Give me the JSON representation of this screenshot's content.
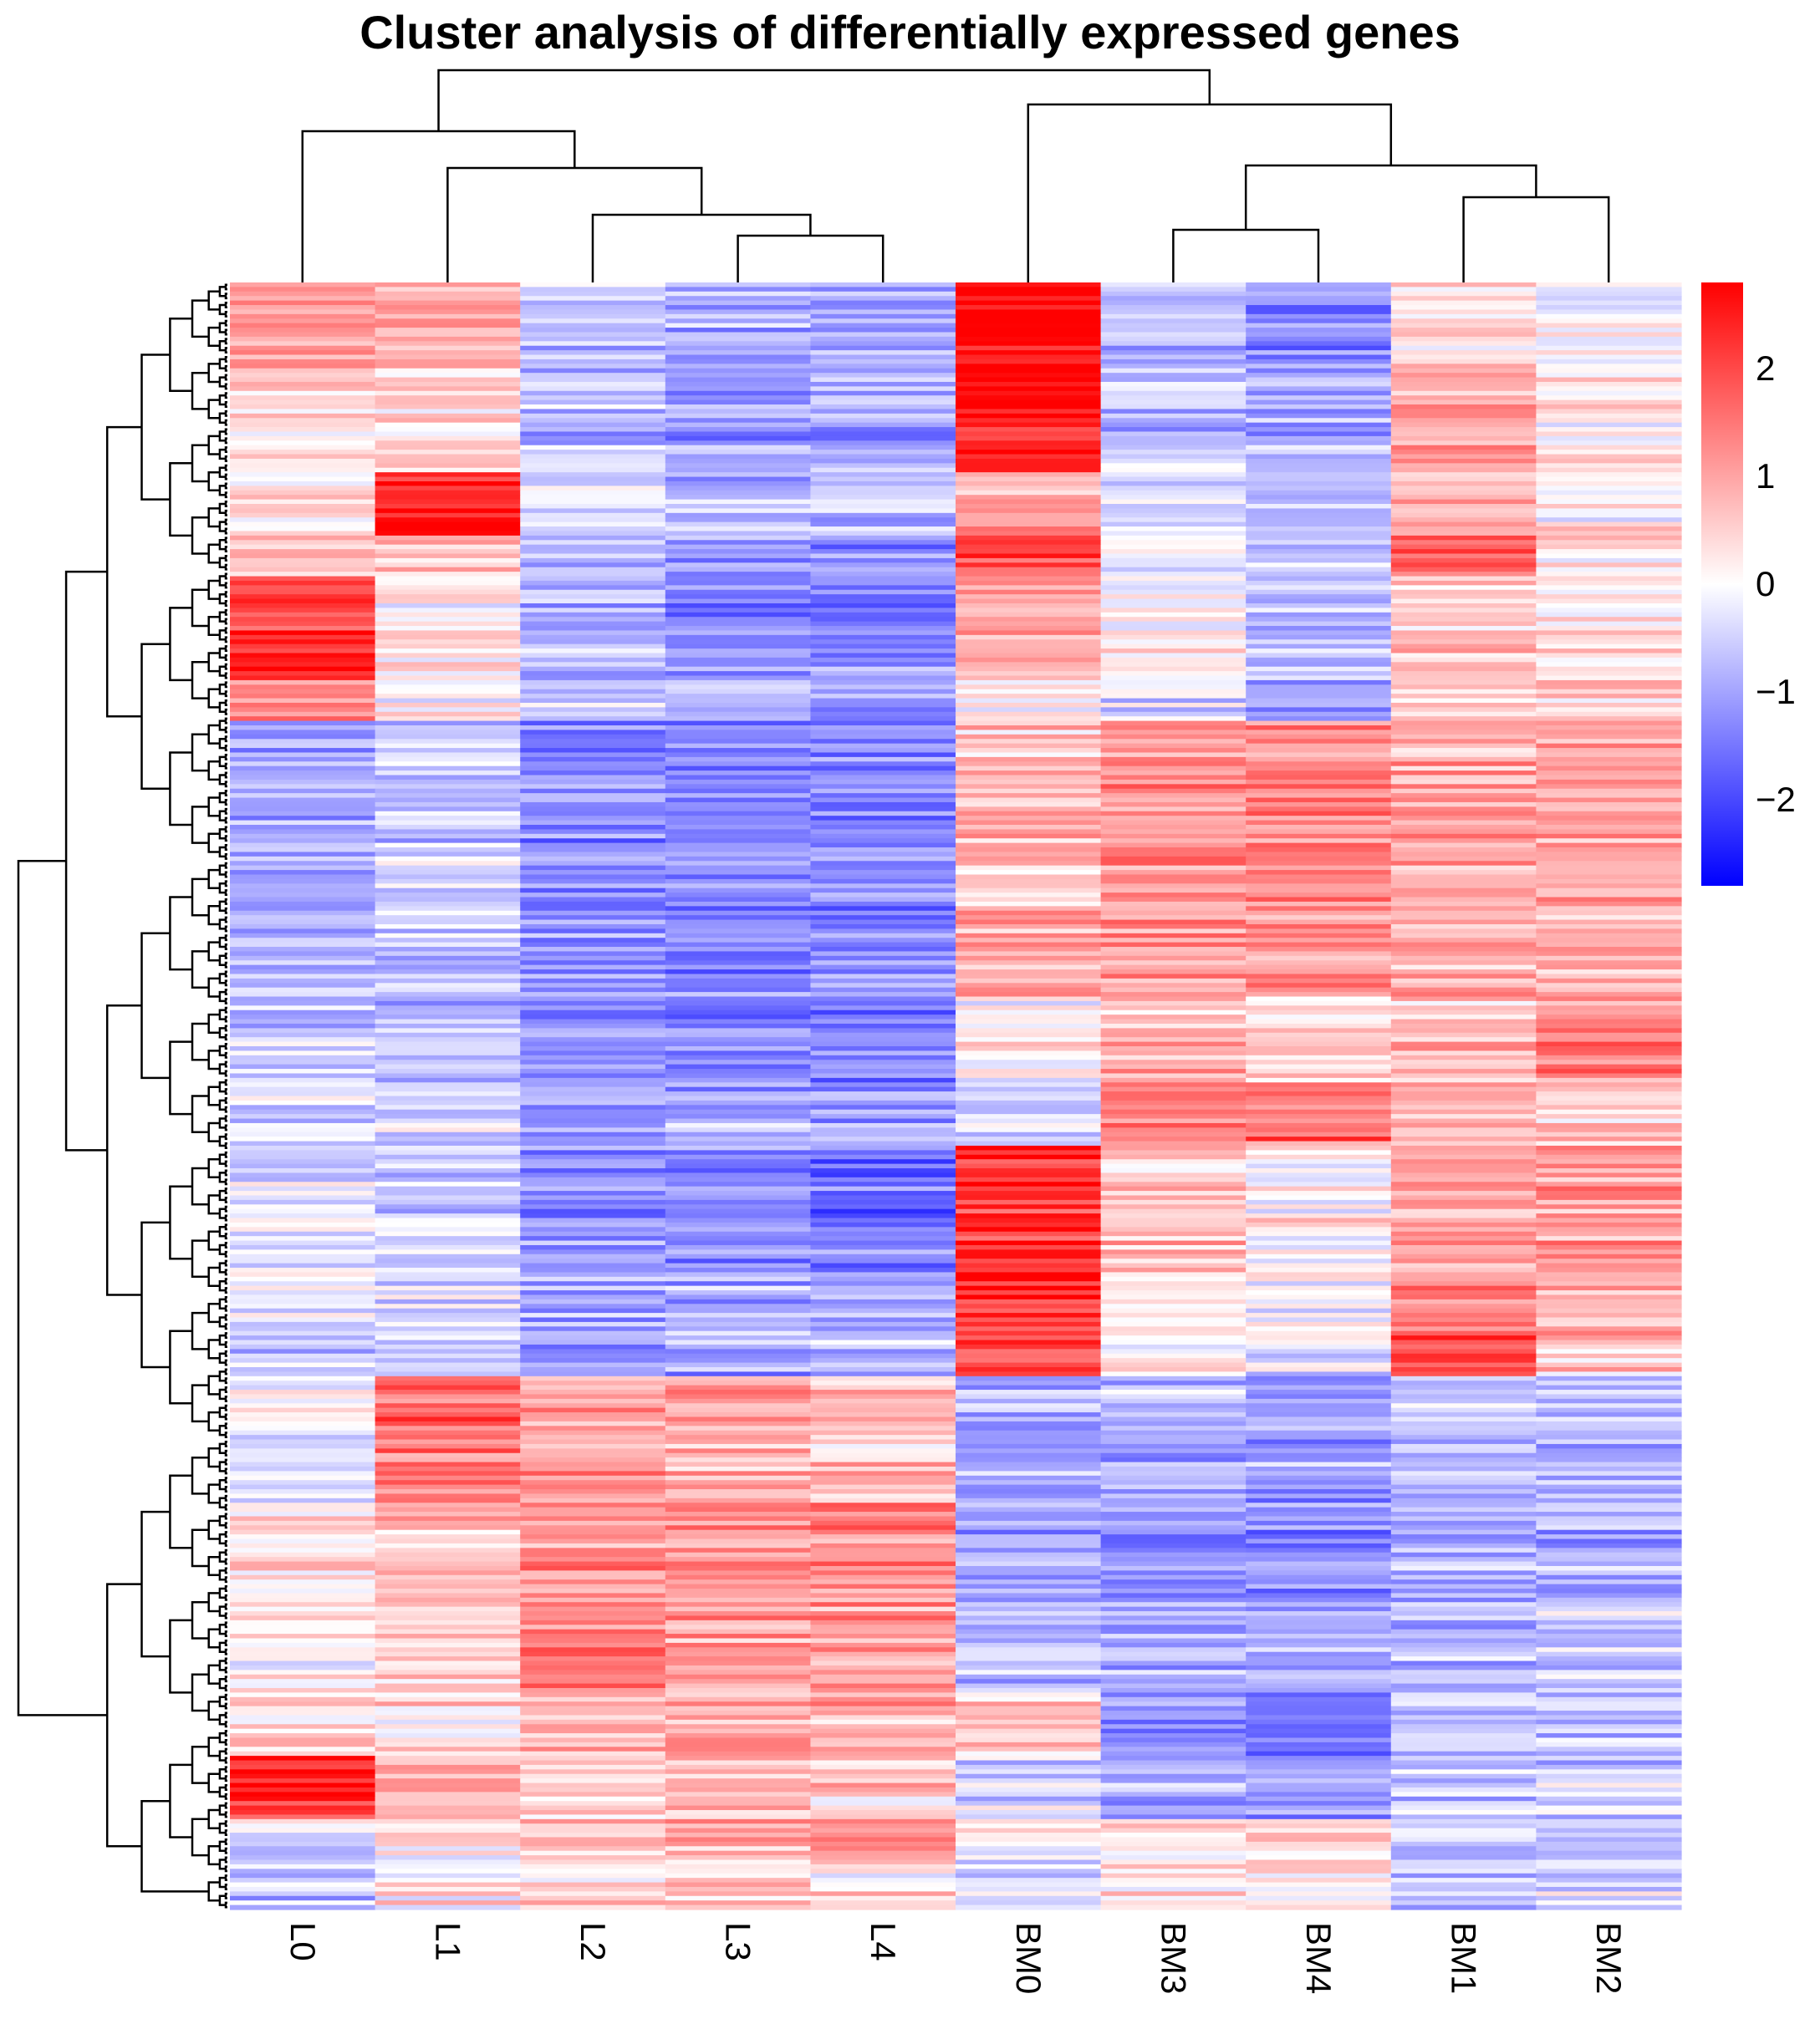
{
  "chart_data": {
    "type": "heatmap",
    "title": "Cluster analysis of differentially expressed genes",
    "columns": [
      "L0",
      "L1",
      "L2",
      "L3",
      "L4",
      "BM0",
      "BM3",
      "BM4",
      "BM1",
      "BM2"
    ],
    "row_dendrogram": true,
    "column_dendrogram": true,
    "row_count": 360,
    "value_range": [
      -2.8,
      2.8
    ],
    "colorbar": {
      "ticks": [
        2,
        1,
        0,
        -1,
        -2
      ],
      "tick_labels": [
        "2",
        "1",
        "0",
        "−1",
        "−2"
      ],
      "low_color": "#0000ff",
      "mid_color": "#ffffff",
      "high_color": "#ff0000",
      "placement": "right"
    },
    "row_blocks": [
      {
        "weight": 4,
        "values": [
          1.1,
          0.9,
          -0.6,
          -0.9,
          -1.0,
          2.8,
          -0.8,
          -1.3,
          0.4,
          -0.2
        ]
      },
      {
        "weight": 5,
        "values": [
          0.3,
          0.4,
          -0.8,
          -1.0,
          -1.0,
          2.6,
          -0.7,
          -0.9,
          1.0,
          0.3
        ]
      },
      {
        "weight": 3,
        "values": [
          0.2,
          2.4,
          -0.4,
          -0.7,
          -0.8,
          0.9,
          -0.5,
          -0.7,
          0.8,
          0.1
        ]
      },
      {
        "weight": 2,
        "values": [
          0.5,
          0.6,
          -0.9,
          -1.3,
          -1.4,
          1.9,
          -0.3,
          -0.6,
          1.6,
          0.2
        ]
      },
      {
        "weight": 5,
        "values": [
          2.2,
          0.2,
          -0.8,
          -1.3,
          -1.3,
          0.9,
          0.0,
          -0.7,
          0.5,
          0.2
        ]
      },
      {
        "weight": 2,
        "values": [
          1.2,
          0.0,
          -0.6,
          -1.0,
          -1.1,
          0.2,
          -0.4,
          -1.1,
          0.4,
          0.5
        ]
      },
      {
        "weight": 9,
        "values": [
          -1.0,
          -0.6,
          -1.3,
          -1.3,
          -1.3,
          0.6,
          1.2,
          1.3,
          0.9,
          1.0
        ]
      },
      {
        "weight": 4,
        "values": [
          -0.7,
          -0.5,
          -1.2,
          -1.3,
          -1.2,
          1.0,
          1.1,
          1.2,
          0.8,
          0.9
        ]
      },
      {
        "weight": 4,
        "values": [
          -0.5,
          -0.6,
          -1.2,
          -1.4,
          -1.4,
          0.1,
          0.8,
          0.6,
          0.7,
          1.3
        ]
      },
      {
        "weight": 3,
        "values": [
          -0.4,
          -0.5,
          -1.0,
          -0.9,
          -1.0,
          -0.4,
          1.3,
          1.6,
          0.7,
          0.6
        ]
      },
      {
        "weight": 6,
        "values": [
          -0.3,
          -0.5,
          -1.2,
          -1.4,
          -1.5,
          2.3,
          0.6,
          0.1,
          1.0,
          1.1
        ]
      },
      {
        "weight": 3,
        "values": [
          -0.4,
          -0.4,
          -0.9,
          -1.0,
          -1.1,
          2.2,
          0.2,
          -0.1,
          1.2,
          0.7
        ]
      },
      {
        "weight": 2,
        "values": [
          -0.6,
          -0.7,
          -1.3,
          -1.0,
          -0.8,
          1.9,
          0.1,
          -0.2,
          2.0,
          0.5
        ]
      },
      {
        "weight": 6,
        "values": [
          -0.2,
          1.6,
          1.0,
          0.9,
          0.6,
          -1.0,
          -0.8,
          -1.0,
          -0.6,
          -0.7
        ]
      },
      {
        "weight": 5,
        "values": [
          0.3,
          0.8,
          1.2,
          1.3,
          1.3,
          -0.9,
          -1.0,
          -1.2,
          -0.8,
          -0.9
        ]
      },
      {
        "weight": 4,
        "values": [
          0.2,
          0.5,
          1.4,
          1.1,
          1.0,
          -0.8,
          -0.9,
          -1.0,
          -0.7,
          -0.6
        ]
      },
      {
        "weight": 3,
        "values": [
          0.5,
          0.4,
          0.8,
          1.0,
          0.9,
          0.6,
          -1.2,
          -1.4,
          -0.5,
          -0.6
        ]
      },
      {
        "weight": 3,
        "values": [
          2.4,
          0.9,
          0.6,
          0.6,
          0.5,
          -0.5,
          -1.0,
          -1.1,
          -0.6,
          -0.5
        ]
      },
      {
        "weight": 2,
        "values": [
          -0.4,
          0.3,
          0.7,
          1.0,
          1.4,
          0.0,
          0.5,
          0.5,
          -0.4,
          -0.6
        ]
      },
      {
        "weight": 2,
        "values": [
          -0.6,
          0.2,
          0.4,
          0.5,
          0.3,
          -0.5,
          0.3,
          0.4,
          -0.5,
          -0.4
        ]
      }
    ]
  }
}
